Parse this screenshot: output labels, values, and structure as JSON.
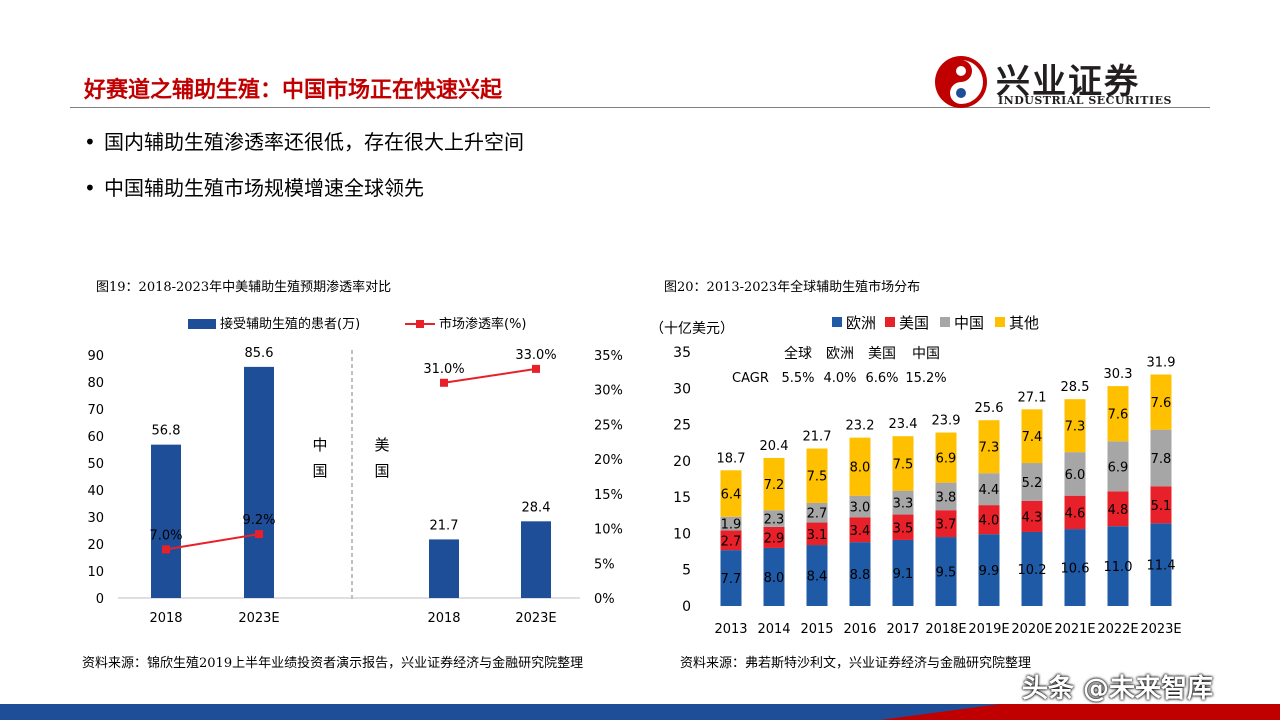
{
  "header": {
    "title": "好赛道之辅助生殖：中国市场正在快速兴起",
    "logo_cn": "兴业证券",
    "logo_en": "INDUSTRIAL SECURITIES"
  },
  "bullets": [
    "国内辅助生殖渗透率还很低，存在很大上升空间",
    "中国辅助生殖市场规模增速全球领先"
  ],
  "figures": {
    "fig19_title": "图19：2018-2023年中美辅助生殖预期渗透率对比",
    "fig20_title": "图20：2013-2023年全球辅助生殖市场分布",
    "fig19_source": "资料来源：锦欣生殖2019上半年业绩投资者演示报告，兴业证券经济与金融研究院整理",
    "fig20_source": "资料来源：弗若斯特沙利文，兴业证券经济与金融研究院整理"
  },
  "watermark": "头条 @未来智库",
  "colors": {
    "brand_red": "#c00000",
    "navy": "#1f4e99",
    "line_red": "#e8202a",
    "gray": "#a6a6a6",
    "yellow": "#ffc000",
    "euro_blue": "#1f5aa6"
  },
  "chart_data": [
    {
      "type": "bar",
      "categories": [
        "2018",
        "2023E",
        "2018",
        "2023E"
      ],
      "groups": [
        "中国",
        "美国"
      ],
      "series": [
        {
          "name": "接受辅助生殖的患者(万)",
          "type": "bar",
          "axis": "left",
          "values": [
            56.8,
            85.6,
            21.7,
            28.4
          ],
          "labels": [
            "56.8",
            "85.6",
            "21.7",
            "28.4"
          ]
        },
        {
          "name": "市场渗透率(%)",
          "type": "line",
          "axis": "right",
          "values": [
            7.0,
            9.2,
            31.0,
            33.0
          ],
          "labels": [
            "7.0%",
            "9.2%",
            "31.0%",
            "33.0%"
          ]
        }
      ],
      "ylim": [
        0,
        90
      ],
      "yticks": [
        "0",
        "10",
        "20",
        "30",
        "40",
        "50",
        "60",
        "70",
        "80",
        "90"
      ],
      "y2lim": [
        0,
        35
      ],
      "y2ticks": [
        "0%",
        "5%",
        "10%",
        "15%",
        "20%",
        "25%",
        "30%",
        "35%"
      ],
      "legend": "top"
    },
    {
      "type": "bar",
      "stacked": true,
      "ylabel": "（十亿美元）",
      "categories": [
        "2013",
        "2014",
        "2015",
        "2016",
        "2017",
        "2018E",
        "2019E",
        "2020E",
        "2021E",
        "2022E",
        "2023E"
      ],
      "series": [
        {
          "name": "欧洲",
          "values": [
            7.7,
            8.0,
            8.4,
            8.8,
            9.1,
            9.5,
            9.9,
            10.2,
            10.6,
            11.0,
            11.4
          ],
          "labels": [
            "7.7",
            "8.0",
            "8.4",
            "8.8",
            "9.1",
            "9.5",
            "9.9",
            "10.2",
            "10.6",
            "11.0",
            "11.4"
          ]
        },
        {
          "name": "美国",
          "values": [
            2.7,
            2.9,
            3.1,
            3.4,
            3.5,
            3.7,
            4.0,
            4.3,
            4.6,
            4.8,
            5.1
          ],
          "labels": [
            "2.7",
            "2.9",
            "3.1",
            "3.4",
            "3.5",
            "3.7",
            "4.0",
            "4.3",
            "4.6",
            "4.8",
            "5.1"
          ]
        },
        {
          "name": "中国",
          "values": [
            1.9,
            2.3,
            2.7,
            3.0,
            3.3,
            3.8,
            4.4,
            5.2,
            6.0,
            6.9,
            7.8
          ],
          "labels": [
            "1.9",
            "2.3",
            "2.7",
            "3.0",
            "3.3",
            "3.8",
            "4.4",
            "5.2",
            "6.0",
            "6.9",
            "7.8"
          ]
        },
        {
          "name": "其他",
          "values": [
            6.4,
            7.2,
            7.5,
            8.0,
            7.5,
            6.9,
            7.3,
            7.4,
            7.3,
            7.6,
            7.6
          ],
          "labels": [
            "6.4",
            "7.2",
            "7.5",
            "8.0",
            "7.5",
            "6.9",
            "7.3",
            "7.4",
            "7.3",
            "7.6",
            "7.6"
          ]
        }
      ],
      "totals": [
        "18.7",
        "20.4",
        "21.7",
        "23.2",
        "23.4",
        "23.9",
        "25.6",
        "27.1",
        "28.5",
        "30.3",
        "31.9"
      ],
      "ylim": [
        0,
        35
      ],
      "yticks": [
        "0",
        "5",
        "10",
        "15",
        "20",
        "25",
        "30",
        "35"
      ],
      "cagr": {
        "header": [
          "全球",
          "欧洲",
          "美国",
          "中国"
        ],
        "label": "CAGR",
        "values": [
          "5.5%",
          "4.0%",
          "6.6%",
          "15.2%"
        ]
      },
      "legend": "top"
    }
  ]
}
